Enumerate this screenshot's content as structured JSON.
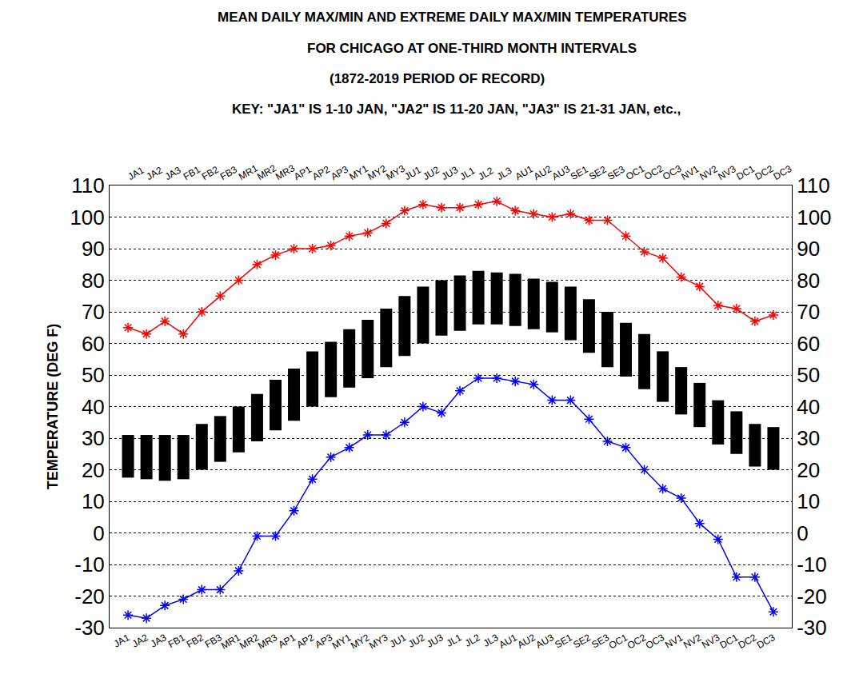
{
  "chart_data": {
    "type": "range_bar",
    "title": "MEAN DAILY MAX/MIN AND EXTREME DAILY MAX/MIN TEMPERATURES",
    "subtitle": [
      "FOR CHICAGO AT ONE-THIRD MONTH INTERVALS",
      "(1872-2019 PERIOD OF RECORD)"
    ],
    "annotations": [
      "KEY: \"JA1\" IS 1-10 JAN, \"JA2\" IS 11-20 JAN, \"JA3\" IS 21-31 JAN, etc.,"
    ],
    "y_label": "TEMPERATURE (DEG F)",
    "categories": [
      "JA1",
      "JA2",
      "JA3",
      "FB1",
      "FB2",
      "FB3",
      "MR1",
      "MR2",
      "MR3",
      "AP1",
      "AP2",
      "AP3",
      "MY1",
      "MY2",
      "MY3",
      "JU1",
      "JU2",
      "JU3",
      "JL1",
      "JL2",
      "JL3",
      "AU1",
      "AU2",
      "AU3",
      "SE1",
      "SE2",
      "SE3",
      "OC1",
      "OC2",
      "OC3",
      "NV1",
      "NV2",
      "NV3",
      "DC1",
      "DC2",
      "DC3"
    ],
    "series": [
      {
        "type": "range_bar",
        "color": "#000000",
        "low": [
          17.5,
          17,
          16.5,
          17,
          20,
          22.5,
          25.5,
          29,
          32.5,
          35.5,
          40,
          43,
          46,
          49,
          52.5,
          56,
          60,
          62.5,
          64,
          66,
          66,
          65.5,
          64.5,
          63.5,
          61,
          57,
          52.5,
          49.5,
          45.5,
          41.5,
          37.5,
          33.5,
          28,
          25,
          21,
          20
        ],
        "high": [
          31,
          31,
          31,
          31,
          34.5,
          37,
          40,
          44,
          48.5,
          52,
          57.5,
          60.5,
          64.5,
          67.5,
          71,
          75,
          78,
          80,
          81.5,
          83,
          82.5,
          82,
          80.5,
          79.5,
          78,
          74,
          70,
          66.5,
          63,
          57.5,
          52.5,
          47.5,
          42,
          38.5,
          34.5,
          33.5
        ]
      },
      {
        "type": "line",
        "color": "#ff0000",
        "marker": "asterisk",
        "values": [
          65,
          63,
          67,
          63,
          70,
          75,
          80,
          85,
          88,
          90,
          90,
          91,
          94,
          95,
          98,
          102,
          104,
          103,
          103,
          104,
          105,
          102,
          101,
          100,
          101,
          99,
          99,
          94,
          89,
          87,
          81,
          78,
          72,
          71,
          67,
          69
        ]
      },
      {
        "type": "line",
        "color": "#0000ff",
        "marker": "asterisk",
        "values": [
          -26,
          -27,
          -23,
          -21,
          -18,
          -18,
          -12,
          -1,
          -1,
          7,
          17,
          24,
          27,
          31,
          31,
          35,
          40,
          38,
          45,
          49,
          49,
          48,
          47,
          42,
          42,
          36,
          29,
          27,
          20,
          14,
          11,
          3,
          -2,
          -14,
          -14,
          -25
        ]
      }
    ],
    "ylim": [
      -30,
      110
    ],
    "yticks": [
      -30,
      -20,
      -10,
      0,
      10,
      20,
      30,
      40,
      50,
      60,
      70,
      80,
      90,
      100,
      110
    ],
    "grid": true
  }
}
